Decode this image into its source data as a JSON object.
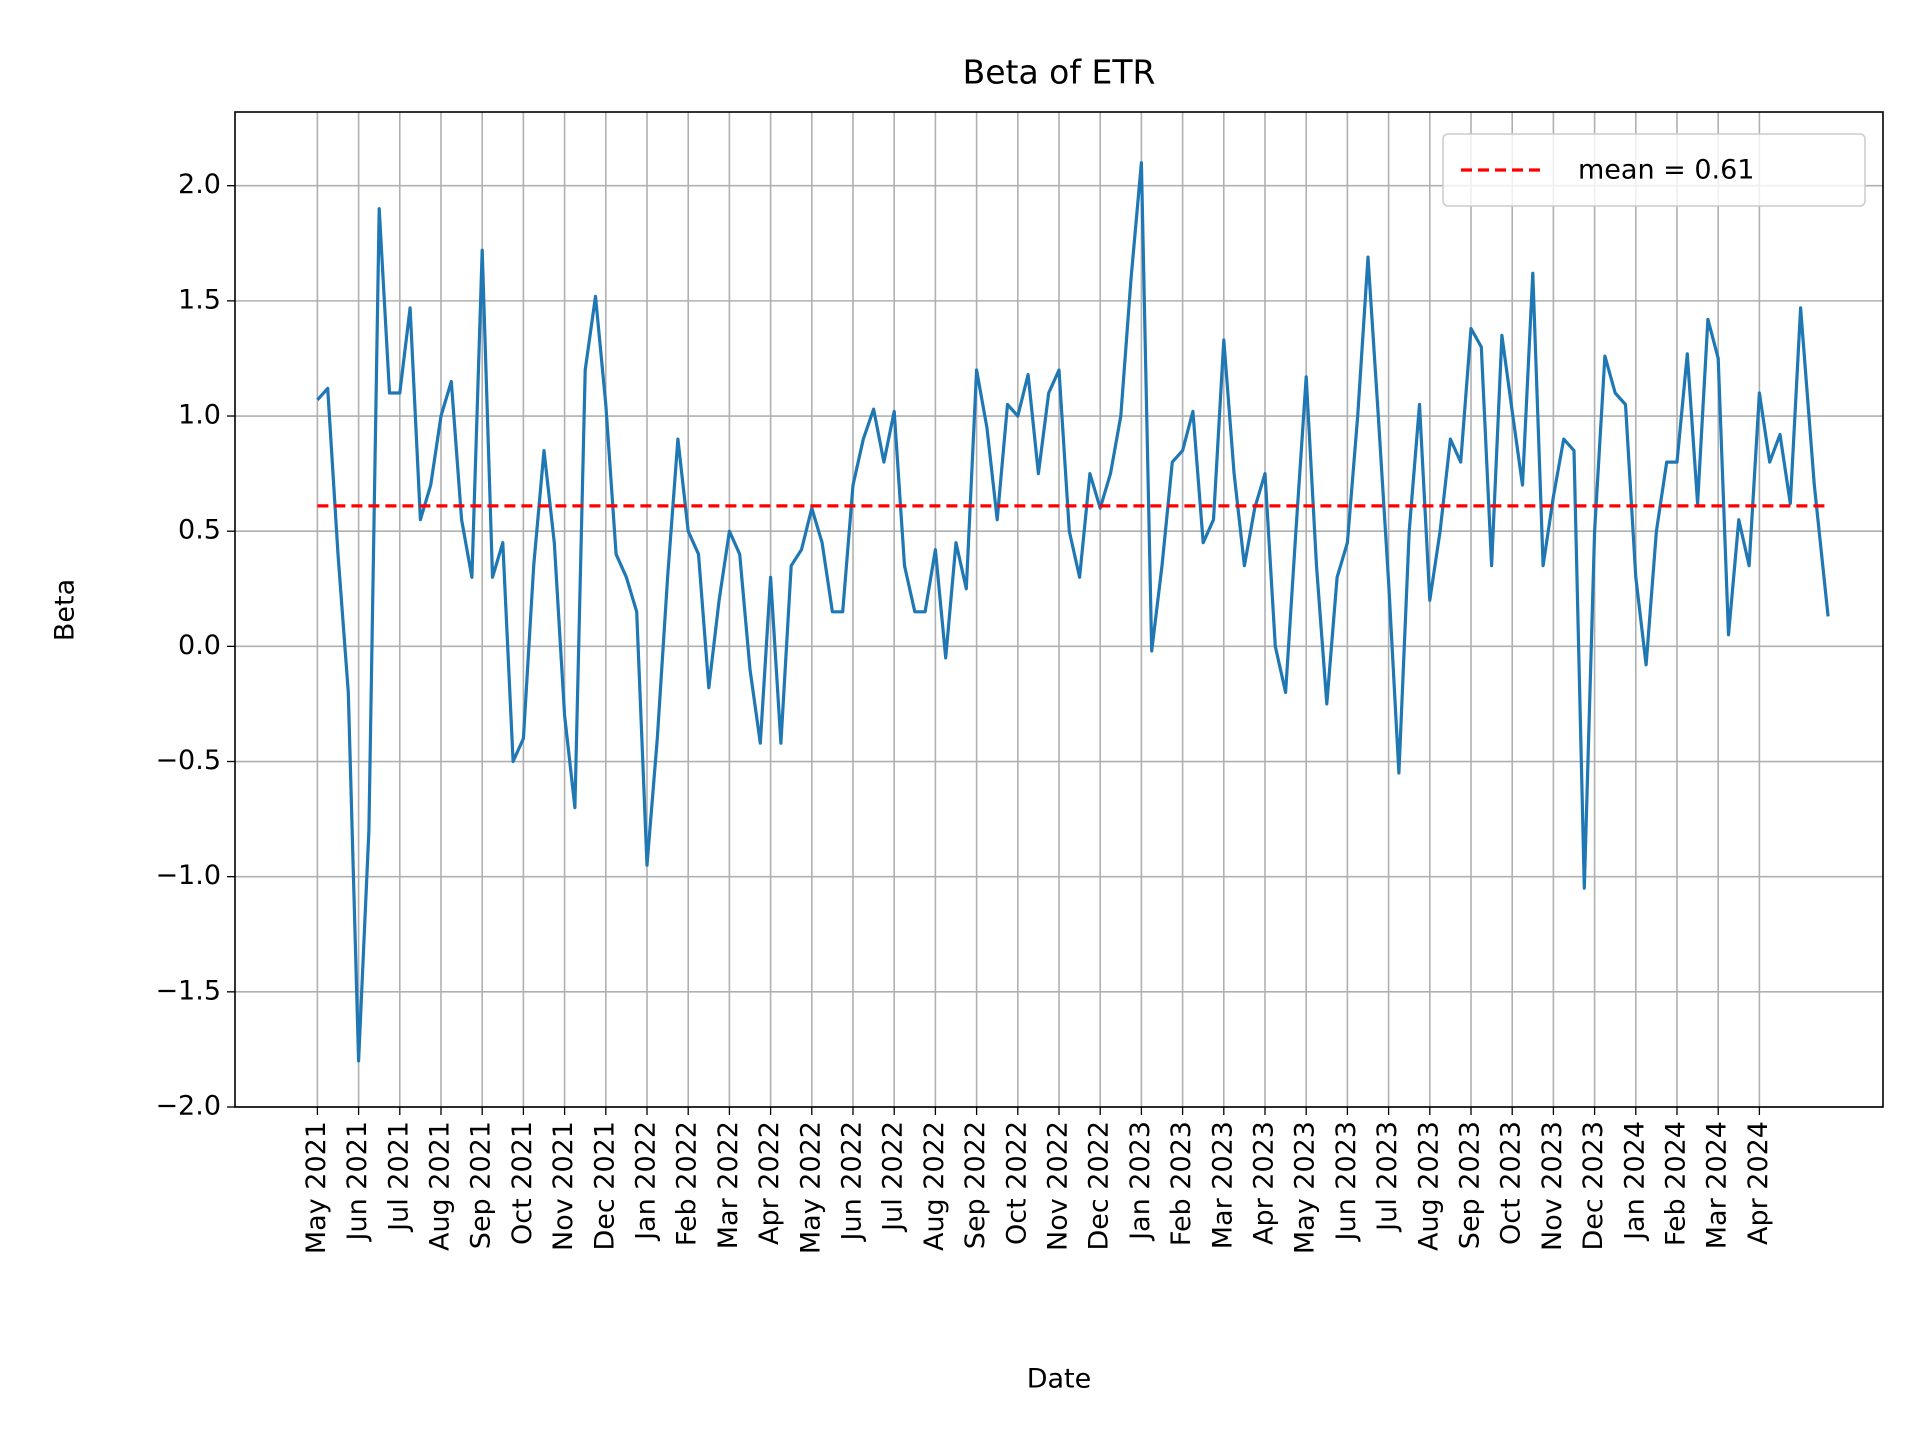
{
  "chart_data": {
    "type": "line",
    "title": "Beta of ETR",
    "x_label": "Date",
    "y_label": "Beta",
    "grid": true,
    "legend": "upper right",
    "xlim": [
      "2021-03",
      "2024-07"
    ],
    "ylim": [
      -2.0,
      2.32
    ],
    "yticks": [
      {
        "value": -2,
        "label": "−2.0"
      },
      {
        "value": -1.5,
        "label": "−1.5"
      },
      {
        "value": -1,
        "label": "−1.0"
      },
      {
        "value": -0.5,
        "label": "−0.5"
      },
      {
        "value": 0,
        "label": "0.0"
      },
      {
        "value": 0.5,
        "label": "0.5"
      },
      {
        "value": 1,
        "label": "1.0"
      },
      {
        "value": 1.5,
        "label": "1.5"
      },
      {
        "value": 2,
        "label": "2.0"
      }
    ],
    "xticks": [
      {
        "value": "2021-05",
        "label": "May 2021"
      },
      {
        "value": "2021-06",
        "label": "Jun 2021"
      },
      {
        "value": "2021-07",
        "label": "Jul 2021"
      },
      {
        "value": "2021-08",
        "label": "Aug 2021"
      },
      {
        "value": "2021-09",
        "label": "Sep 2021"
      },
      {
        "value": "2021-10",
        "label": "Oct 2021"
      },
      {
        "value": "2021-11",
        "label": "Nov 2021"
      },
      {
        "value": "2021-12",
        "label": "Dec 2021"
      },
      {
        "value": "2022-01",
        "label": "Jan 2022"
      },
      {
        "value": "2022-02",
        "label": "Feb 2022"
      },
      {
        "value": "2022-03",
        "label": "Mar 2022"
      },
      {
        "value": "2022-04",
        "label": "Apr 2022"
      },
      {
        "value": "2022-05",
        "label": "May 2022"
      },
      {
        "value": "2022-06",
        "label": "Jun 2022"
      },
      {
        "value": "2022-07",
        "label": "Jul 2022"
      },
      {
        "value": "2022-08",
        "label": "Aug 2022"
      },
      {
        "value": "2022-09",
        "label": "Sep 2022"
      },
      {
        "value": "2022-10",
        "label": "Oct 2022"
      },
      {
        "value": "2022-11",
        "label": "Nov 2022"
      },
      {
        "value": "2022-12",
        "label": "Dec 2022"
      },
      {
        "value": "2023-01",
        "label": "Jan 2023"
      },
      {
        "value": "2023-02",
        "label": "Feb 2023"
      },
      {
        "value": "2023-03",
        "label": "Mar 2023"
      },
      {
        "value": "2023-04",
        "label": "Apr 2023"
      },
      {
        "value": "2023-05",
        "label": "May 2023"
      },
      {
        "value": "2023-06",
        "label": "Jun 2023"
      },
      {
        "value": "2023-07",
        "label": "Jul 2023"
      },
      {
        "value": "2023-08",
        "label": "Aug 2023"
      },
      {
        "value": "2023-09",
        "label": "Sep 2023"
      },
      {
        "value": "2023-10",
        "label": "Oct 2023"
      },
      {
        "value": "2023-11",
        "label": "Nov 2023"
      },
      {
        "value": "2023-12",
        "label": "Dec 2023"
      },
      {
        "value": "2024-01",
        "label": "Jan 2024"
      },
      {
        "value": "2024-02",
        "label": "Feb 2024"
      },
      {
        "value": "2024-03",
        "label": "Mar 2024"
      },
      {
        "value": "2024-04",
        "label": "Apr 2024"
      }
    ],
    "series": [
      {
        "color": "#1f77b4",
        "x": [
          "2021-05",
          "2021-05",
          "2021-05",
          "2021-05",
          "2021-06",
          "2021-06",
          "2021-06",
          "2021-06",
          "2021-07",
          "2021-07",
          "2021-07",
          "2021-07",
          "2021-08",
          "2021-08",
          "2021-08",
          "2021-08",
          "2021-09",
          "2021-09",
          "2021-09",
          "2021-09",
          "2021-10",
          "2021-10",
          "2021-10",
          "2021-10",
          "2021-11",
          "2021-11",
          "2021-11",
          "2021-11",
          "2021-12",
          "2021-12",
          "2021-12",
          "2021-12",
          "2022-01",
          "2022-01",
          "2022-01",
          "2022-01",
          "2022-02",
          "2022-02",
          "2022-02",
          "2022-02",
          "2022-03",
          "2022-03",
          "2022-03",
          "2022-03",
          "2022-04",
          "2022-04",
          "2022-04",
          "2022-04",
          "2022-05",
          "2022-05",
          "2022-05",
          "2022-05",
          "2022-06",
          "2022-06",
          "2022-06",
          "2022-06",
          "2022-07",
          "2022-07",
          "2022-07",
          "2022-07",
          "2022-08",
          "2022-08",
          "2022-08",
          "2022-08",
          "2022-09",
          "2022-09",
          "2022-09",
          "2022-09",
          "2022-10",
          "2022-10",
          "2022-10",
          "2022-10",
          "2022-11",
          "2022-11",
          "2022-11",
          "2022-11",
          "2022-12",
          "2022-12",
          "2022-12",
          "2022-12",
          "2023-01",
          "2023-01",
          "2023-01",
          "2023-01",
          "2023-02",
          "2023-02",
          "2023-02",
          "2023-02",
          "2023-03",
          "2023-03",
          "2023-03",
          "2023-03",
          "2023-04",
          "2023-04",
          "2023-04",
          "2023-04",
          "2023-05",
          "2023-05",
          "2023-05",
          "2023-05",
          "2023-06",
          "2023-06",
          "2023-06",
          "2023-06",
          "2023-07",
          "2023-07",
          "2023-07",
          "2023-07",
          "2023-08",
          "2023-08",
          "2023-08",
          "2023-08",
          "2023-09",
          "2023-09",
          "2023-09",
          "2023-09",
          "2023-10",
          "2023-10",
          "2023-10",
          "2023-10",
          "2023-11",
          "2023-11",
          "2023-11",
          "2023-11",
          "2023-12",
          "2023-12",
          "2023-12",
          "2023-12",
          "2024-01",
          "2024-01",
          "2024-01",
          "2024-01",
          "2024-02",
          "2024-02",
          "2024-02",
          "2024-02",
          "2024-03",
          "2024-03",
          "2024-03",
          "2024-03",
          "2024-04",
          "2024-04",
          "2024-04",
          "2024-04",
          "2024-05",
          "2024-05",
          "2024-05"
        ],
        "values": [
          1.07,
          1.12,
          0.4,
          -0.2,
          -1.8,
          -0.8,
          1.9,
          1.1,
          1.1,
          1.47,
          0.55,
          0.7,
          1.0,
          1.15,
          0.55,
          0.3,
          1.72,
          0.3,
          0.45,
          -0.5,
          -0.4,
          0.35,
          0.85,
          0.45,
          -0.3,
          -0.7,
          1.2,
          1.52,
          1.05,
          0.4,
          0.3,
          0.15,
          -0.95,
          -0.4,
          0.3,
          0.9,
          0.5,
          0.4,
          -0.18,
          0.2,
          0.5,
          0.4,
          -0.1,
          -0.42,
          0.3,
          -0.42,
          0.35,
          0.42,
          0.6,
          0.45,
          0.15,
          0.15,
          0.7,
          0.9,
          1.03,
          0.8,
          1.02,
          0.35,
          0.15,
          0.15,
          0.42,
          -0.05,
          0.45,
          0.25,
          1.2,
          0.95,
          0.55,
          1.05,
          1.0,
          1.18,
          0.75,
          1.1,
          1.2,
          0.5,
          0.3,
          0.75,
          0.6,
          0.75,
          1.0,
          1.6,
          2.1,
          -0.02,
          0.35,
          0.8,
          0.85,
          1.02,
          0.45,
          0.55,
          1.33,
          0.75,
          0.35,
          0.6,
          0.75,
          0.0,
          -0.2,
          0.5,
          1.17,
          0.35,
          -0.25,
          0.3,
          0.45,
          1.0,
          1.69,
          1.0,
          0.28,
          -0.55,
          0.5,
          1.05,
          0.2,
          0.5,
          0.9,
          0.8,
          1.38,
          1.3,
          0.35,
          1.35,
          1.02,
          0.7,
          1.62,
          0.35,
          0.65,
          0.9,
          0.85,
          -1.05,
          0.5,
          1.26,
          1.1,
          1.05,
          0.3,
          -0.08,
          0.5,
          0.8,
          0.8,
          1.27,
          0.62,
          1.42,
          1.25,
          0.05,
          0.55,
          0.35,
          1.1,
          0.8,
          0.92,
          0.62,
          1.47,
          0.7,
          0.13
        ]
      }
    ],
    "mean": {
      "name": "mean = 0.61",
      "value": 0.61,
      "color": "#ff0000"
    }
  }
}
